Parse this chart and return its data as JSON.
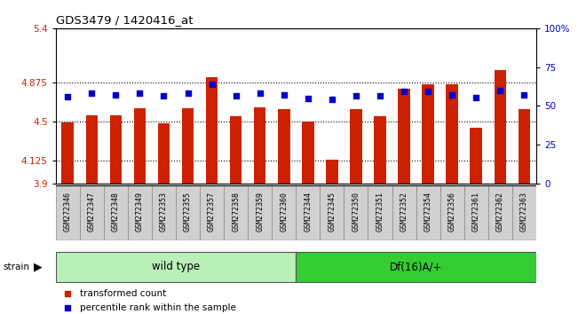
{
  "title": "GDS3479 / 1420416_at",
  "samples": [
    "GSM272346",
    "GSM272347",
    "GSM272348",
    "GSM272349",
    "GSM272353",
    "GSM272355",
    "GSM272357",
    "GSM272358",
    "GSM272359",
    "GSM272360",
    "GSM272344",
    "GSM272345",
    "GSM272350",
    "GSM272351",
    "GSM272352",
    "GSM272354",
    "GSM272356",
    "GSM272361",
    "GSM272362",
    "GSM272363"
  ],
  "bar_values": [
    4.49,
    4.56,
    4.56,
    4.63,
    4.48,
    4.63,
    4.93,
    4.55,
    4.64,
    4.62,
    4.5,
    4.13,
    4.62,
    4.55,
    4.82,
    4.86,
    4.86,
    4.44,
    5.0,
    4.62
  ],
  "blue_values": [
    4.74,
    4.77,
    4.76,
    4.77,
    4.75,
    4.77,
    4.86,
    4.75,
    4.77,
    4.76,
    4.72,
    4.71,
    4.75,
    4.75,
    4.79,
    4.79,
    4.76,
    4.73,
    4.8,
    4.76
  ],
  "ymin": 3.9,
  "ymax": 5.4,
  "yticks": [
    3.9,
    4.125,
    4.5,
    4.875,
    5.4
  ],
  "ytick_labels": [
    "3.9",
    "4.125",
    "4.5",
    "4.875",
    "5.4"
  ],
  "right_yticks": [
    0,
    25,
    50,
    75,
    100
  ],
  "right_ytick_labels": [
    "0",
    "25",
    "50",
    "75",
    "100%"
  ],
  "dotted_lines": [
    4.125,
    4.5,
    4.875
  ],
  "groups": [
    {
      "label": "wild type",
      "start": 0,
      "end": 10,
      "color": "#b8f0b8"
    },
    {
      "label": "Df(16)A/+",
      "start": 10,
      "end": 20,
      "color": "#33cc33"
    }
  ],
  "bar_color": "#cc2200",
  "blue_color": "#0000cc",
  "sample_box_color": "#d0d0d0",
  "title_color": "#000000",
  "ylabel_color": "#cc2200",
  "right_ylabel_color": "#0000cc",
  "legend_items": [
    {
      "label": "transformed count",
      "color": "#cc2200"
    },
    {
      "label": "percentile rank within the sample",
      "color": "#0000cc"
    }
  ]
}
